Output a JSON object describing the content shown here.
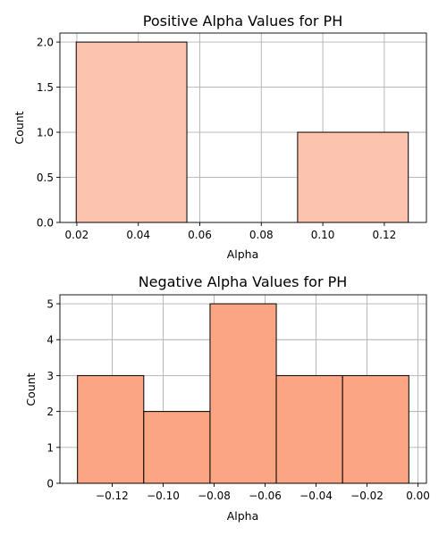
{
  "chart_data": [
    {
      "type": "bar",
      "title": "Positive Alpha Values for PH",
      "xlabel": "Alpha",
      "ylabel": "Count",
      "xlim": [
        0.0145,
        0.1337
      ],
      "ylim": [
        0,
        2.1
      ],
      "xticks": [
        0.02,
        0.04,
        0.06,
        0.08,
        0.1,
        0.12
      ],
      "xtick_labels": [
        "0.02",
        "0.04",
        "0.06",
        "0.08",
        "0.10",
        "0.12"
      ],
      "yticks": [
        0.0,
        0.5,
        1.0,
        1.5,
        2.0
      ],
      "ytick_labels": [
        "0.0",
        "0.5",
        "1.0",
        "1.5",
        "2.0"
      ],
      "bins": [
        {
          "x0": 0.0198,
          "x1": 0.0558,
          "count": 2
        },
        {
          "x0": 0.0558,
          "x1": 0.0918,
          "count": 0
        },
        {
          "x0": 0.0918,
          "x1": 0.1278,
          "count": 1
        }
      ],
      "color": "#fcc4af",
      "grid": true
    },
    {
      "type": "bar",
      "title": "Negative Alpha Values for PH",
      "xlabel": "Alpha",
      "ylabel": "Count",
      "xlim": [
        -0.1405,
        0.0033
      ],
      "ylim": [
        0,
        5.25
      ],
      "xticks": [
        -0.12,
        -0.1,
        -0.08,
        -0.06,
        -0.04,
        -0.02,
        0.0
      ],
      "xtick_labels": [
        "−0.12",
        "−0.10",
        "−0.08",
        "−0.06",
        "−0.04",
        "−0.02",
        "0.00"
      ],
      "yticks": [
        0,
        1,
        2,
        3,
        4,
        5
      ],
      "ytick_labels": [
        "0",
        "1",
        "2",
        "3",
        "4",
        "5"
      ],
      "bins": [
        {
          "x0": -0.1336,
          "x1": -0.1076,
          "count": 3
        },
        {
          "x0": -0.1076,
          "x1": -0.0816,
          "count": 2
        },
        {
          "x0": -0.0816,
          "x1": -0.0556,
          "count": 5
        },
        {
          "x0": -0.0556,
          "x1": -0.0296,
          "count": 3
        },
        {
          "x0": -0.0296,
          "x1": -0.0036,
          "count": 3
        }
      ],
      "color": "#fca582",
      "grid": true
    }
  ]
}
